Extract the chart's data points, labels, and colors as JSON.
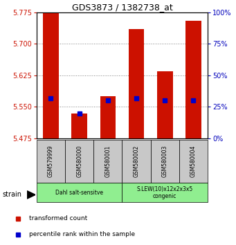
{
  "title": "GDS3873 / 1382738_at",
  "samples": [
    "GSM579999",
    "GSM580000",
    "GSM580001",
    "GSM580002",
    "GSM580003",
    "GSM580004"
  ],
  "red_values": [
    5.775,
    5.535,
    5.575,
    5.735,
    5.635,
    5.755
  ],
  "blue_values": [
    32,
    20,
    30,
    32,
    30,
    30
  ],
  "baseline": 5.475,
  "ylim_left": [
    5.475,
    5.775
  ],
  "ylim_right": [
    0,
    100
  ],
  "yticks_left": [
    5.475,
    5.55,
    5.625,
    5.7,
    5.775
  ],
  "yticks_right": [
    0,
    25,
    50,
    75,
    100
  ],
  "groups": [
    {
      "label": "Dahl salt-sensitve",
      "start": 0,
      "end": 3,
      "color": "#90EE90"
    },
    {
      "label": "S.LEW(10)x12x2x3x5\ncongenic",
      "start": 3,
      "end": 6,
      "color": "#90EE90"
    }
  ],
  "group_box_color": "#c8c8c8",
  "bar_color": "#cc1100",
  "blue_color": "#0000cc",
  "left_tick_color": "#cc1100",
  "right_tick_color": "#0000bb",
  "legend_red_label": "transformed count",
  "legend_blue_label": "percentile rank within the sample",
  "strain_label": "strain"
}
